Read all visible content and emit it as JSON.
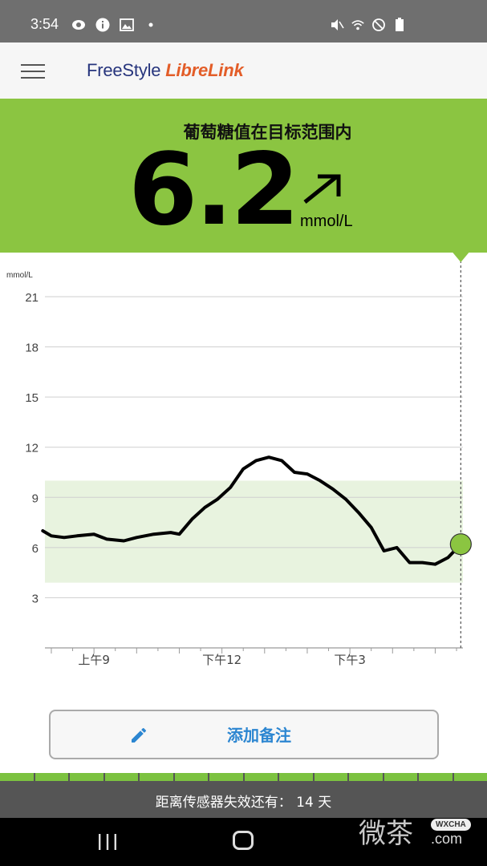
{
  "status_bar": {
    "time": "3:54",
    "left_icons": [
      "eye-icon",
      "info-icon",
      "image-icon",
      "dot-icon"
    ],
    "right_icons": [
      "mute-icon",
      "wifi-icon",
      "dnd-icon",
      "battery-icon"
    ]
  },
  "app_bar": {
    "logo_part1": "FreeStyle ",
    "logo_part2": "LibreLink"
  },
  "glucose": {
    "status_message": "葡萄糖值在目标范围内",
    "value": "6.2",
    "unit": "mmol/L",
    "trend": "rising-diagonal",
    "panel_color": "#8bc541"
  },
  "chart_data": {
    "type": "line",
    "ylabel": "mmol/L",
    "ylim": [
      0,
      21
    ],
    "yticks": [
      "21",
      "18",
      "15",
      "12",
      "9",
      "6",
      "3"
    ],
    "xtick_labels": [
      "上午9",
      "下午12",
      "下午3"
    ],
    "target_range": [
      3.9,
      10
    ],
    "target_color": "#e8f3df",
    "series": [
      {
        "values": [
          [
            7.8,
            7.0
          ],
          [
            8.0,
            6.7
          ],
          [
            8.3,
            6.6
          ],
          [
            8.6,
            6.7
          ],
          [
            9.0,
            6.8
          ],
          [
            9.3,
            6.5
          ],
          [
            9.7,
            6.4
          ],
          [
            10.0,
            6.6
          ],
          [
            10.4,
            6.8
          ],
          [
            10.8,
            6.9
          ],
          [
            11.0,
            6.8
          ],
          [
            11.3,
            7.7
          ],
          [
            11.6,
            8.4
          ],
          [
            11.9,
            8.9
          ],
          [
            12.2,
            9.6
          ],
          [
            12.5,
            10.7
          ],
          [
            12.8,
            11.2
          ],
          [
            13.1,
            11.4
          ],
          [
            13.4,
            11.2
          ],
          [
            13.7,
            10.5
          ],
          [
            14.0,
            10.4
          ],
          [
            14.3,
            10.0
          ],
          [
            14.6,
            9.5
          ],
          [
            14.9,
            8.9
          ],
          [
            15.2,
            8.1
          ],
          [
            15.5,
            7.2
          ],
          [
            15.8,
            5.8
          ],
          [
            16.1,
            6.0
          ],
          [
            16.4,
            5.1
          ],
          [
            16.7,
            5.1
          ],
          [
            17.0,
            5.0
          ],
          [
            17.3,
            5.4
          ],
          [
            17.6,
            6.2
          ]
        ]
      }
    ],
    "x_range": [
      7.85,
      17.65
    ],
    "current_point": [
      17.6,
      6.2
    ],
    "line_color": "#000000",
    "point_color": "#8bc541"
  },
  "note_button": {
    "label": "添加备注",
    "icon": "pencil-icon",
    "color": "#2c86d1"
  },
  "sensor": {
    "segments": 14,
    "remaining_text": "距离传感器失效还有：  14 天"
  },
  "nav_bar": {
    "buttons": [
      "recents-icon",
      "home-icon"
    ]
  },
  "watermark": {
    "text": "微茶",
    "badge": "WXCHA",
    "domain": ".com"
  }
}
